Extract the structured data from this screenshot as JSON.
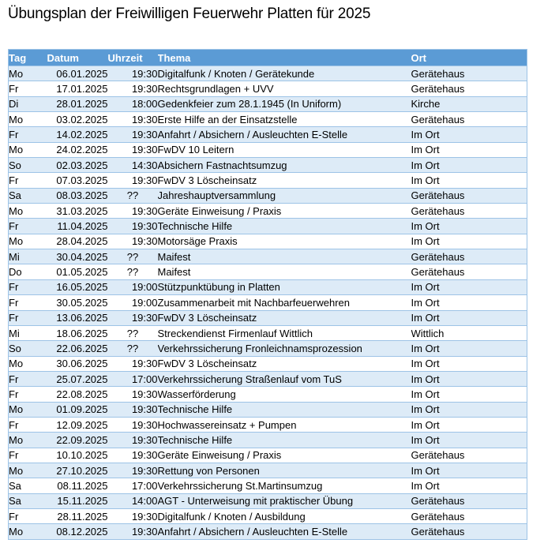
{
  "page": {
    "title": "Übungsplan der Freiwilligen Feuerwehr Platten für 2025"
  },
  "colors": {
    "header-bg": "#5B9BD5",
    "header-text": "#FFFFFF",
    "band": "#DDEBF7",
    "border": "#9DC3E6",
    "text": "#000000"
  },
  "table": {
    "columns": [
      {
        "key": "tag",
        "label": "Tag"
      },
      {
        "key": "datum",
        "label": "Datum"
      },
      {
        "key": "uhrzeit",
        "label": "Uhrzeit"
      },
      {
        "key": "thema",
        "label": "Thema"
      },
      {
        "key": "ort",
        "label": "Ort"
      }
    ],
    "rows": [
      {
        "tag": "Mo",
        "datum": "06.01.2025",
        "uhrzeit": "19:30",
        "thema": "Digitalfunk / Knoten / Gerätekunde",
        "ort": "Gerätehaus"
      },
      {
        "tag": "Fr",
        "datum": "17.01.2025",
        "uhrzeit": "19:30",
        "thema": "Rechtsgrundlagen + UVV",
        "ort": "Gerätehaus"
      },
      {
        "tag": "Di",
        "datum": "28.01.2025",
        "uhrzeit": "18:00",
        "thema": "Gedenkfeier zum 28.1.1945 (In Uniform)",
        "ort": "Kirche"
      },
      {
        "tag": "Mo",
        "datum": "03.02.2025",
        "uhrzeit": "19:30",
        "thema": "Erste Hilfe an der Einsatzstelle",
        "ort": "Gerätehaus"
      },
      {
        "tag": "Fr",
        "datum": "14.02.2025",
        "uhrzeit": "19:30",
        "thema": "Anfahrt / Absichern / Ausleuchten E-Stelle",
        "ort": "Im Ort"
      },
      {
        "tag": "Mo",
        "datum": "24.02.2025",
        "uhrzeit": "19:30",
        "thema": "FwDV 10 Leitern",
        "ort": "Im Ort"
      },
      {
        "tag": "So",
        "datum": "02.03.2025",
        "uhrzeit": "14:30",
        "thema": "Absichern Fastnachtsumzug",
        "ort": "Im Ort"
      },
      {
        "tag": "Fr",
        "datum": "07.03.2025",
        "uhrzeit": "19:30",
        "thema": "FwDV 3 Löscheinsatz",
        "ort": "Im Ort"
      },
      {
        "tag": "Sa",
        "datum": "08.03.2025",
        "uhrzeit": "??",
        "thema": "Jahreshauptversammlung",
        "ort": "Gerätehaus"
      },
      {
        "tag": "Mo",
        "datum": "31.03.2025",
        "uhrzeit": "19:30",
        "thema": "Geräte Einweisung / Praxis",
        "ort": "Gerätehaus"
      },
      {
        "tag": "Fr",
        "datum": "11.04.2025",
        "uhrzeit": "19:30",
        "thema": "Technische Hilfe",
        "ort": "Im Ort"
      },
      {
        "tag": "Mo",
        "datum": "28.04.2025",
        "uhrzeit": "19:30",
        "thema": "Motorsäge Praxis",
        "ort": "Im Ort"
      },
      {
        "tag": "Mi",
        "datum": "30.04.2025",
        "uhrzeit": "??",
        "thema": "Maifest",
        "ort": "Gerätehaus"
      },
      {
        "tag": "Do",
        "datum": "01.05.2025",
        "uhrzeit": "??",
        "thema": "Maifest",
        "ort": "Gerätehaus"
      },
      {
        "tag": "Fr",
        "datum": "16.05.2025",
        "uhrzeit": "19:00",
        "thema": "Stützpunktübung in Platten",
        "ort": "Im Ort"
      },
      {
        "tag": "Fr",
        "datum": "30.05.2025",
        "uhrzeit": "19:00",
        "thema": "Zusammenarbeit mit Nachbarfeuerwehren",
        "ort": "Im Ort"
      },
      {
        "tag": "Fr",
        "datum": "13.06.2025",
        "uhrzeit": "19:30",
        "thema": "FwDV 3 Löscheinsatz",
        "ort": "Im Ort"
      },
      {
        "tag": "Mi",
        "datum": "18.06.2025",
        "uhrzeit": "??",
        "thema": "Streckendienst Firmenlauf Wittlich",
        "ort": "Wittlich"
      },
      {
        "tag": "So",
        "datum": "22.06.2025",
        "uhrzeit": "??",
        "thema": "Verkehrssicherung Fronleichnamsprozession",
        "ort": "Im Ort"
      },
      {
        "tag": "Mo",
        "datum": "30.06.2025",
        "uhrzeit": "19:30",
        "thema": "FwDV 3 Löscheinsatz",
        "ort": "Im Ort"
      },
      {
        "tag": "Fr",
        "datum": "25.07.2025",
        "uhrzeit": "17:00",
        "thema": "Verkehrssicherung Straßenlauf vom TuS",
        "ort": "Im Ort"
      },
      {
        "tag": "Fr",
        "datum": "22.08.2025",
        "uhrzeit": "19:30",
        "thema": "Wasserförderung",
        "ort": "Im Ort"
      },
      {
        "tag": "Mo",
        "datum": "01.09.2025",
        "uhrzeit": "19:30",
        "thema": "Technische Hilfe",
        "ort": "Im Ort"
      },
      {
        "tag": "Fr",
        "datum": "12.09.2025",
        "uhrzeit": "19:30",
        "thema": "Hochwassereinsatz + Pumpen",
        "ort": "Im Ort"
      },
      {
        "tag": "Mo",
        "datum": "22.09.2025",
        "uhrzeit": "19:30",
        "thema": "Technische Hilfe",
        "ort": "Im Ort"
      },
      {
        "tag": "Fr",
        "datum": "10.10.2025",
        "uhrzeit": "19:30",
        "thema": "Geräte Einweisung / Praxis",
        "ort": "Gerätehaus"
      },
      {
        "tag": "Mo",
        "datum": "27.10.2025",
        "uhrzeit": "19:30",
        "thema": "Rettung von Personen",
        "ort": "Im Ort"
      },
      {
        "tag": "Sa",
        "datum": "08.11.2025",
        "uhrzeit": "17:00",
        "thema": "Verkehrssicherung St.Martinsumzug",
        "ort": "Im Ort"
      },
      {
        "tag": "Sa",
        "datum": "15.11.2025",
        "uhrzeit": "14:00",
        "thema": "AGT - Unterweisung mit praktischer Übung",
        "ort": "Gerätehaus"
      },
      {
        "tag": "Fr",
        "datum": "28.11.2025",
        "uhrzeit": "19:30",
        "thema": "Digitalfunk / Knoten / Ausbildung",
        "ort": "Gerätehaus"
      },
      {
        "tag": "Mo",
        "datum": "08.12.2025",
        "uhrzeit": "19:30",
        "thema": "Anfahrt / Absichern / Ausleuchten E-Stelle",
        "ort": "Gerätehaus"
      }
    ]
  }
}
